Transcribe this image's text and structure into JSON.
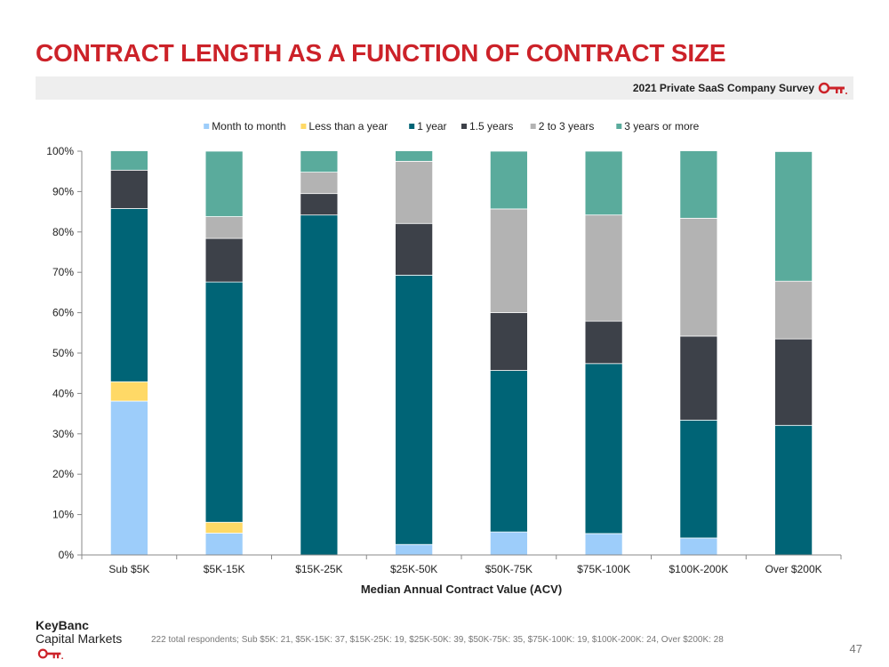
{
  "slide": {
    "title": "CONTRACT LENGTH AS A FUNCTION OF CONTRACT SIZE",
    "banner_text": "2021 Private SaaS Company Survey",
    "logo_line1": "KeyBanc",
    "logo_line2": "Capital Markets",
    "footnote": "222 total respondents; Sub $5K: 21, $5K-15K: 37, $15K-25K: 19, $25K-50K: 39,  $50K-75K: 35, $75K-100K: 19, $100K-200K: 24, Over $200K: 28",
    "page_number": "47",
    "brand_color": "#cc2229"
  },
  "chart_data": {
    "type": "bar",
    "stacked": true,
    "xlabel": "Median Annual Contract Value (ACV)",
    "ylabel": "",
    "ylim": [
      0,
      100
    ],
    "yticks": [
      0,
      10,
      20,
      30,
      40,
      50,
      60,
      70,
      80,
      90,
      100
    ],
    "ytick_labels": [
      "0%",
      "10%",
      "20%",
      "30%",
      "40%",
      "50%",
      "60%",
      "70%",
      "80%",
      "90%",
      "100%"
    ],
    "grid": false,
    "legend_position": "top",
    "categories": [
      "Sub $5K",
      "$5K-15K",
      "$15K-25K",
      "$25K-50K",
      "$50K-75K",
      "$75K-100K",
      "$100K-200K",
      "Over $200K"
    ],
    "series": [
      {
        "name": "Month to month",
        "color": "#9dcdfa",
        "values": [
          38.1,
          5.4,
          0.0,
          2.6,
          5.7,
          5.3,
          4.2,
          0.0
        ]
      },
      {
        "name": "Less than a year",
        "color": "#ffd966",
        "values": [
          4.8,
          2.7,
          0.0,
          0.0,
          0.0,
          0.0,
          0.0,
          0.0
        ]
      },
      {
        "name": "1 year",
        "color": "#006476",
        "values": [
          42.9,
          59.5,
          84.2,
          66.7,
          40.0,
          42.1,
          29.2,
          32.1
        ]
      },
      {
        "name": "1.5 years",
        "color": "#3d4149",
        "values": [
          9.5,
          10.8,
          5.3,
          12.8,
          14.3,
          10.5,
          20.8,
          21.4
        ]
      },
      {
        "name": "2 to 3 years",
        "color": "#b3b3b3",
        "values": [
          0.0,
          5.4,
          5.3,
          15.4,
          25.7,
          26.3,
          29.2,
          14.3
        ]
      },
      {
        "name": "3 years or more",
        "color": "#5aab9c",
        "values": [
          4.8,
          16.2,
          5.3,
          2.6,
          14.3,
          15.8,
          16.7,
          32.1
        ]
      }
    ]
  }
}
